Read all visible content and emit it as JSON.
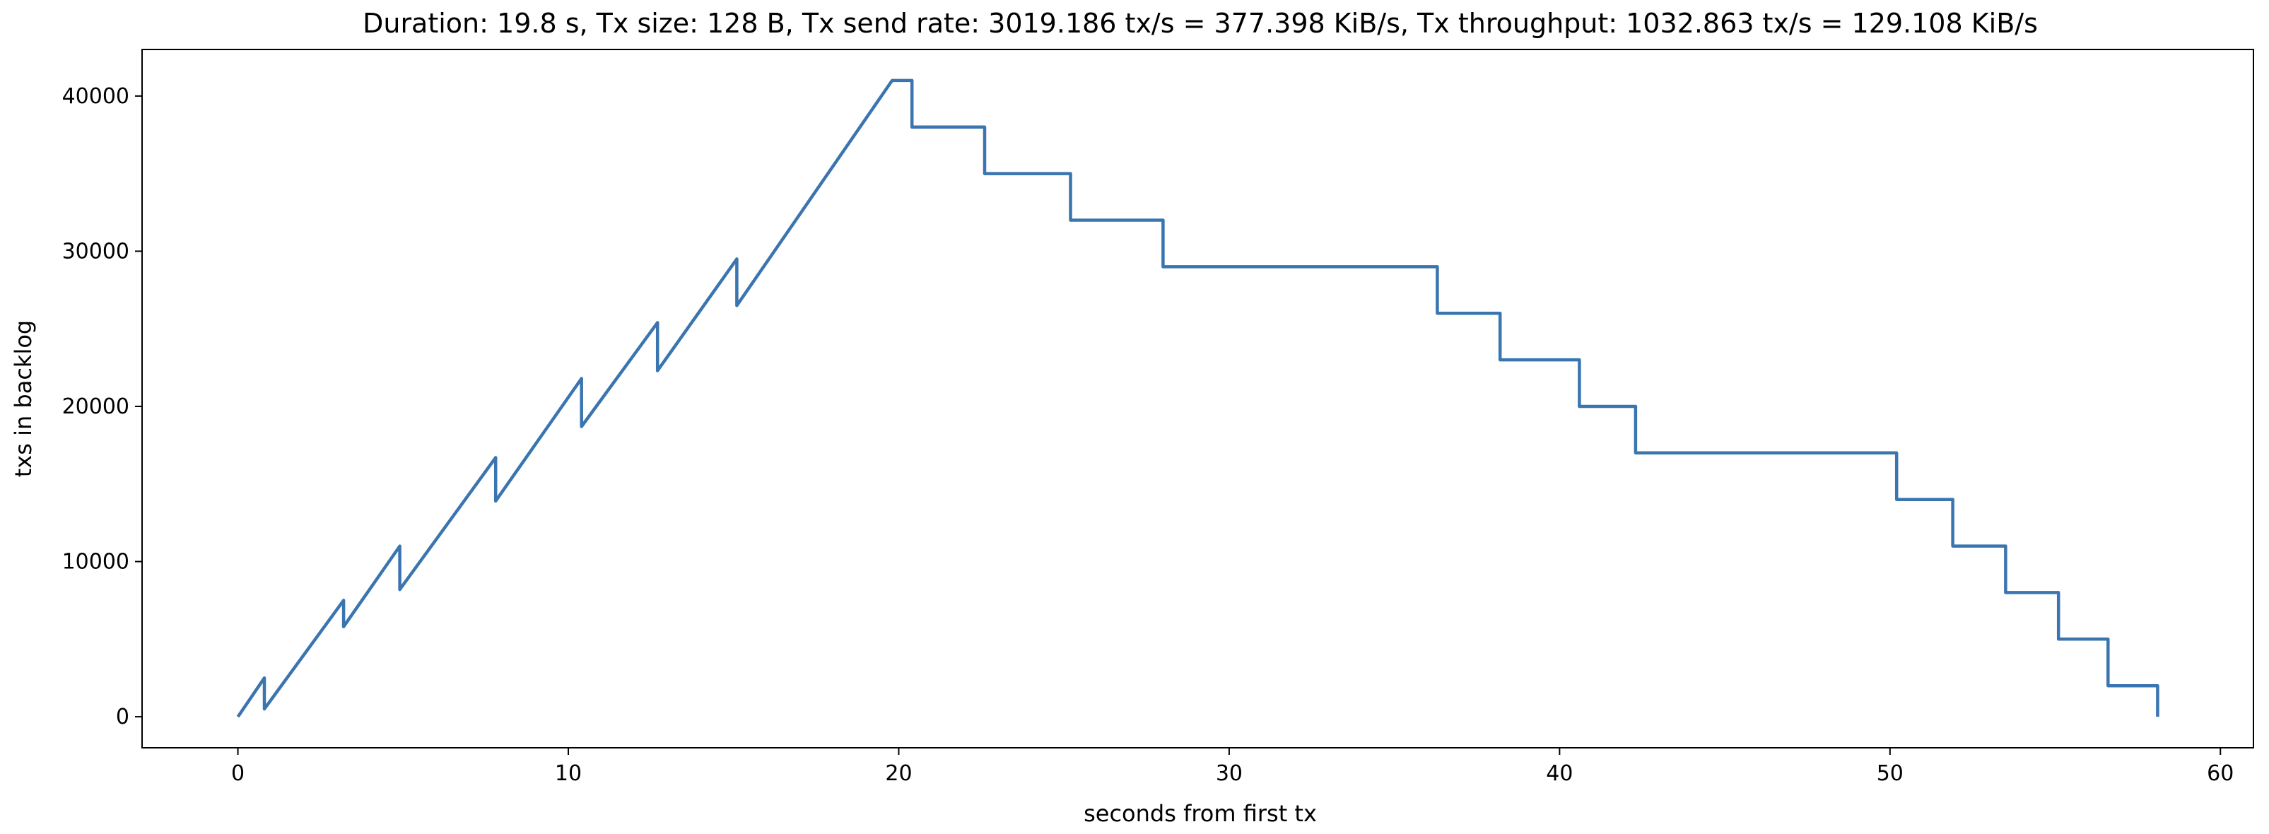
{
  "chart_data": {
    "type": "line",
    "title": "Duration: 19.8 s, Tx size: 128 B, Tx send rate: 3019.186 tx/s = 377.398 KiB/s, Tx throughput: 1032.863 tx/s = 129.108 KiB/s",
    "xlabel": "seconds from first tx",
    "ylabel": "txs in backlog",
    "xlim": [
      -2.9,
      61.0
    ],
    "ylim": [
      -2000,
      43000
    ],
    "xticks": [
      0,
      10,
      20,
      30,
      40,
      50,
      60
    ],
    "yticks": [
      0,
      10000,
      20000,
      30000,
      40000
    ],
    "grid": false,
    "line_color": "#3a75b0",
    "series": [
      {
        "x": [
          0,
          0.8,
          0.8,
          3.2,
          3.2,
          4.9,
          4.9,
          7.8,
          7.8,
          10.4,
          10.4,
          12.7,
          12.7,
          15.1,
          15.1,
          19.8,
          20.4,
          20.4,
          22.6,
          22.6,
          25.2,
          25.2,
          28.0,
          28.0,
          36.3,
          36.3,
          38.2,
          38.2,
          40.6,
          40.6,
          42.3,
          42.3,
          50.2,
          50.2,
          51.9,
          51.9,
          53.5,
          53.5,
          55.1,
          55.1,
          56.6,
          56.6,
          58.1,
          58.1
        ],
        "y": [
          0,
          2500,
          500,
          7500,
          5800,
          11000,
          8200,
          16700,
          13900,
          21800,
          18700,
          25400,
          22300,
          29500,
          26500,
          41000,
          41000,
          38000,
          38000,
          35000,
          35000,
          32000,
          32000,
          29000,
          29000,
          26000,
          26000,
          23000,
          23000,
          20000,
          20000,
          17000,
          17000,
          14000,
          14000,
          11000,
          11000,
          8000,
          8000,
          5000,
          5000,
          2000,
          2000,
          0
        ]
      }
    ]
  }
}
